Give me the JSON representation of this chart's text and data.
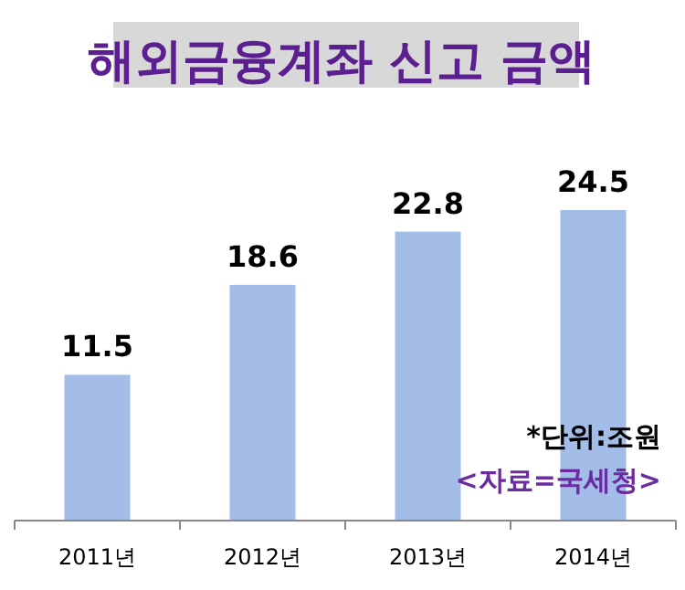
{
  "chart_data": {
    "type": "bar",
    "title": "해외금융계좌 신고 금액",
    "categories": [
      "2011년",
      "2012년",
      "2013년",
      "2014년"
    ],
    "values": [
      11.5,
      18.6,
      22.8,
      24.5
    ],
    "color": "#a3bce8",
    "data_labels": true,
    "annotations": [
      "*단위:조원",
      "<자료=국세청>"
    ]
  }
}
